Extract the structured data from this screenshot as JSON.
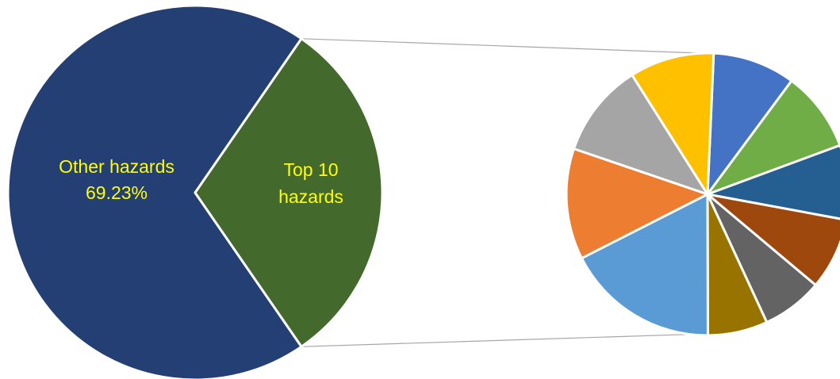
{
  "chart_data": {
    "type": "pie",
    "main_pie": {
      "slices": [
        {
          "label_lines": [
            "Other hazards",
            "69.23%"
          ],
          "value": 69.23,
          "color": "#243F73"
        },
        {
          "label_lines": [
            "Top 10",
            "hazards"
          ],
          "value": 30.77,
          "color": "#43692C"
        }
      ]
    },
    "sub_pie": {
      "values": [
        8.4,
        8.2,
        7.6,
        7.3,
        6.2,
        6.1,
        15.6,
        11.3,
        9.6,
        8.6
      ],
      "colors": [
        "#4472C4",
        "#70AD47",
        "#255E91",
        "#9E480E",
        "#636363",
        "#997300",
        "#5B9BD5",
        "#ED7D31",
        "#A5A5A5",
        "#FFC000"
      ]
    },
    "label_color": "#FFFF00",
    "connector_color": "#A6A6A6",
    "legend": "none"
  }
}
